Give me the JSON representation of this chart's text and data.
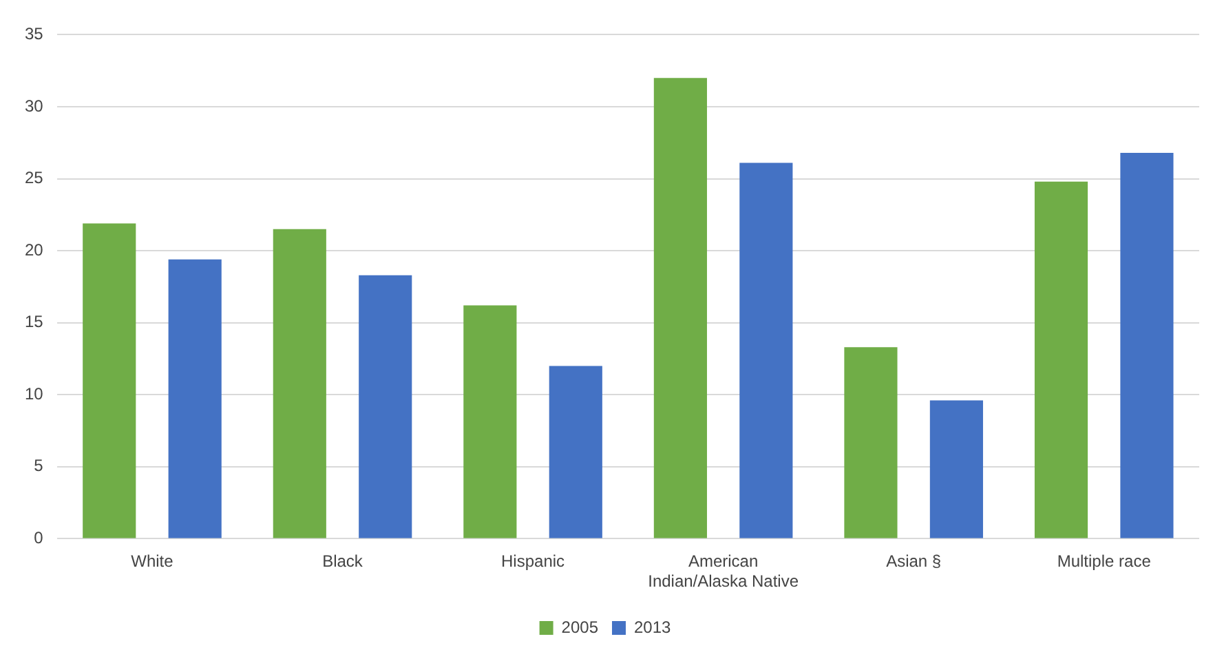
{
  "chart_data": {
    "type": "bar",
    "categories": [
      "White",
      "Black",
      "Hispanic",
      "American Indian/Alaska Native",
      "Asian §",
      "Multiple race"
    ],
    "series": [
      {
        "name": "2005",
        "color": "#70ad47",
        "values": [
          21.9,
          21.5,
          16.2,
          32.0,
          13.3,
          24.8
        ]
      },
      {
        "name": "2013",
        "color": "#4472c4",
        "values": [
          19.4,
          18.3,
          12.0,
          26.1,
          9.6,
          26.8
        ]
      }
    ],
    "ylim": [
      0,
      35
    ],
    "yticks": [
      0,
      5,
      10,
      15,
      20,
      25,
      30,
      35
    ],
    "grid": "y",
    "legend": "bottom"
  }
}
